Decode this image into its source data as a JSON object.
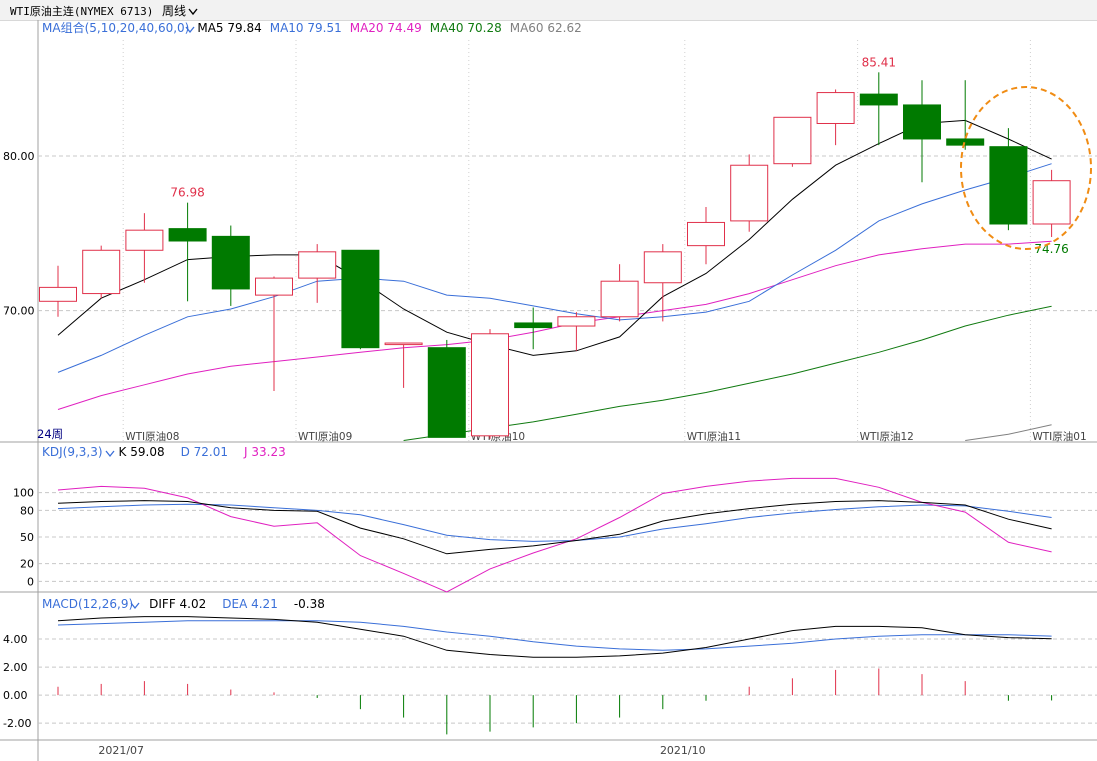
{
  "header": {
    "symbol_title": "WTI原油主连(NYMEX 6713)",
    "period_label": "周线",
    "period_arrow": "chevron-down-icon"
  },
  "colors": {
    "up": "#e0304a",
    "down": "#007a00",
    "ma5": "#000000",
    "ma10": "#3a6fd8",
    "ma20": "#e020c0",
    "ma40": "#107a10",
    "ma60": "#808080",
    "grid": "#c8c8c8",
    "annotation": "#f08c14"
  },
  "chart_data": [
    {
      "type": "candlestick",
      "panel": "main",
      "indicator_title": "MA组合(5,10,20,40,60,0)",
      "ma_legend": [
        {
          "name": "MA5",
          "value": "79.84",
          "color": "#000000"
        },
        {
          "name": "MA10",
          "value": "79.51",
          "color": "#3a6fd8"
        },
        {
          "name": "MA20",
          "value": "74.49",
          "color": "#e020c0"
        },
        {
          "name": "MA40",
          "value": "70.28",
          "color": "#107a10"
        },
        {
          "name": "MA60",
          "value": "62.62",
          "color": "#808080"
        }
      ],
      "y_ticks": [
        "70.00",
        "80.00"
      ],
      "ylim": [
        61.5,
        87.5
      ],
      "period_tag": "24周",
      "contract_labels": [
        {
          "text": "WTI原油08",
          "i": 1
        },
        {
          "text": "WTI原油09",
          "i": 5
        },
        {
          "text": "WTI原油10",
          "i": 9
        },
        {
          "text": "WTI原油11",
          "i": 14
        },
        {
          "text": "WTI原油12",
          "i": 18
        },
        {
          "text": "WTI原油01",
          "i": 22
        }
      ],
      "price_labels": [
        {
          "text": "76.98",
          "i": 3,
          "value": 76.98,
          "pos": "above",
          "color": "#e0304a"
        },
        {
          "text": "85.41",
          "i": 19,
          "value": 85.41,
          "pos": "above",
          "color": "#e0304a"
        },
        {
          "text": "74.76",
          "i": 23,
          "value": 74.76,
          "pos": "below",
          "color": "#007a00"
        }
      ],
      "candles": [
        {
          "o": 70.6,
          "h": 72.9,
          "l": 69.6,
          "c": 71.5
        },
        {
          "o": 71.1,
          "h": 74.2,
          "l": 70.8,
          "c": 73.9
        },
        {
          "o": 73.9,
          "h": 76.3,
          "l": 71.8,
          "c": 75.2
        },
        {
          "o": 75.3,
          "h": 76.98,
          "l": 70.6,
          "c": 74.5
        },
        {
          "o": 74.8,
          "h": 75.5,
          "l": 70.3,
          "c": 71.4
        },
        {
          "o": 71.0,
          "h": 72.2,
          "l": 64.8,
          "c": 72.1
        },
        {
          "o": 72.1,
          "h": 74.3,
          "l": 70.5,
          "c": 73.8
        },
        {
          "o": 73.9,
          "h": 73.9,
          "l": 67.5,
          "c": 67.6
        },
        {
          "o": 67.8,
          "h": 67.9,
          "l": 65.0,
          "c": 67.9
        },
        {
          "o": 67.6,
          "h": 68.1,
          "l": 61.8,
          "c": 61.8
        },
        {
          "o": 61.9,
          "h": 68.8,
          "l": 61.7,
          "c": 68.5
        },
        {
          "o": 69.2,
          "h": 70.2,
          "l": 67.5,
          "c": 68.9
        },
        {
          "o": 69.0,
          "h": 69.9,
          "l": 67.4,
          "c": 69.6
        },
        {
          "o": 69.6,
          "h": 73.0,
          "l": 69.3,
          "c": 71.9
        },
        {
          "o": 71.8,
          "h": 74.3,
          "l": 69.3,
          "c": 73.8
        },
        {
          "o": 74.2,
          "h": 76.7,
          "l": 73.0,
          "c": 75.7
        },
        {
          "o": 75.8,
          "h": 80.1,
          "l": 75.1,
          "c": 79.4
        },
        {
          "o": 79.5,
          "h": 82.5,
          "l": 79.3,
          "c": 82.5
        },
        {
          "o": 82.1,
          "h": 84.3,
          "l": 80.7,
          "c": 84.1
        },
        {
          "o": 84.0,
          "h": 85.41,
          "l": 80.7,
          "c": 83.3
        },
        {
          "o": 83.3,
          "h": 84.9,
          "l": 78.3,
          "c": 81.1
        },
        {
          "o": 81.1,
          "h": 84.9,
          "l": 80.4,
          "c": 80.7
        },
        {
          "o": 80.6,
          "h": 81.8,
          "l": 75.2,
          "c": 75.6
        },
        {
          "o": 75.6,
          "h": 79.1,
          "l": 74.76,
          "c": 78.4
        }
      ],
      "ma5": [
        68.4,
        70.8,
        72.0,
        73.3,
        73.5,
        73.6,
        73.6,
        72.0,
        70.1,
        68.6,
        67.8,
        67.1,
        67.4,
        68.3,
        70.9,
        72.4,
        74.6,
        77.2,
        79.4,
        80.8,
        82.1,
        82.3,
        81.1,
        79.8
      ],
      "ma10": [
        66.0,
        67.1,
        68.4,
        69.6,
        70.1,
        70.9,
        71.9,
        72.1,
        71.9,
        71.0,
        70.8,
        70.3,
        69.8,
        69.4,
        69.6,
        69.9,
        70.6,
        72.3,
        73.9,
        75.8,
        76.9,
        77.8,
        78.6,
        79.5
      ],
      "ma20": [
        63.6,
        64.5,
        65.2,
        65.9,
        66.4,
        66.7,
        67.0,
        67.3,
        67.6,
        67.8,
        68.1,
        68.6,
        69.2,
        69.6,
        70.0,
        70.4,
        71.1,
        72.0,
        72.9,
        73.6,
        74.0,
        74.3,
        74.3,
        74.49
      ],
      "ma40": [
        null,
        null,
        null,
        null,
        null,
        null,
        null,
        null,
        61.6,
        62.0,
        62.4,
        62.8,
        63.3,
        63.8,
        64.2,
        64.7,
        65.3,
        65.9,
        66.6,
        67.3,
        68.1,
        69.0,
        69.7,
        70.28
      ],
      "ma60": [
        null,
        null,
        null,
        null,
        null,
        null,
        null,
        null,
        null,
        null,
        null,
        null,
        null,
        null,
        null,
        null,
        null,
        null,
        null,
        null,
        null,
        61.6,
        62.0,
        62.62
      ]
    },
    {
      "type": "line",
      "panel": "kdj",
      "indicator_title": "KDJ(9,3,3)",
      "legend": [
        {
          "name": "K",
          "value": "59.08",
          "color": "#000000"
        },
        {
          "name": "D",
          "value": "72.01",
          "color": "#3a6fd8"
        },
        {
          "name": "J",
          "value": "33.23",
          "color": "#e020c0"
        }
      ],
      "y_ticks": [
        "0",
        "20",
        "50",
        "80",
        "100"
      ],
      "ylim": [
        -12,
        130
      ],
      "K": [
        88,
        90,
        91,
        90,
        83,
        80,
        79,
        60,
        48,
        31,
        36,
        40,
        46,
        53,
        68,
        76,
        82,
        87,
        90,
        91,
        89,
        86,
        70,
        59.08
      ],
      "D": [
        82,
        84,
        86,
        87,
        86,
        83,
        80,
        75,
        64,
        52,
        47,
        45,
        46,
        50,
        59,
        65,
        72,
        77,
        81,
        84,
        86,
        85,
        79,
        72.01
      ],
      "J": [
        103,
        107,
        105,
        94,
        73,
        62,
        66,
        29,
        9,
        -12,
        14,
        32,
        48,
        72,
        99,
        107,
        113,
        116,
        116,
        106,
        89,
        78,
        44,
        33.23
      ]
    },
    {
      "type": "bar_line",
      "panel": "macd",
      "indicator_title": "MACD(12,26,9)",
      "legend": [
        {
          "name": "DIFF",
          "value": "4.02",
          "color": "#000000"
        },
        {
          "name": "DEA",
          "value": "4.21",
          "color": "#3a6fd8"
        },
        {
          "name": "",
          "value": "-0.38",
          "color": "#000000"
        }
      ],
      "y_ticks": [
        "-2.00",
        "0.00",
        "2.00",
        "4.00"
      ],
      "ylim": [
        -3.2,
        6.0
      ],
      "DIFF": [
        5.3,
        5.5,
        5.6,
        5.6,
        5.5,
        5.4,
        5.2,
        4.7,
        4.2,
        3.2,
        2.9,
        2.7,
        2.7,
        2.8,
        3.0,
        3.4,
        4.0,
        4.6,
        4.9,
        4.9,
        4.8,
        4.3,
        4.1,
        4.02
      ],
      "DEA": [
        5.0,
        5.1,
        5.2,
        5.3,
        5.3,
        5.3,
        5.3,
        5.2,
        4.9,
        4.5,
        4.2,
        3.8,
        3.5,
        3.3,
        3.2,
        3.3,
        3.5,
        3.7,
        4.0,
        4.2,
        4.3,
        4.3,
        4.3,
        4.21
      ],
      "MACD": [
        0.6,
        0.8,
        1.0,
        0.8,
        0.4,
        0.2,
        -0.2,
        -1.0,
        -1.6,
        -2.8,
        -2.6,
        -2.3,
        -2.0,
        -1.6,
        -1.0,
        -0.4,
        0.6,
        1.2,
        1.8,
        1.9,
        1.5,
        1.0,
        -0.4,
        -0.38
      ],
      "date_labels": [
        {
          "text": "2021/07",
          "i": 1
        },
        {
          "text": "2021/10",
          "i": 14
        }
      ]
    }
  ]
}
